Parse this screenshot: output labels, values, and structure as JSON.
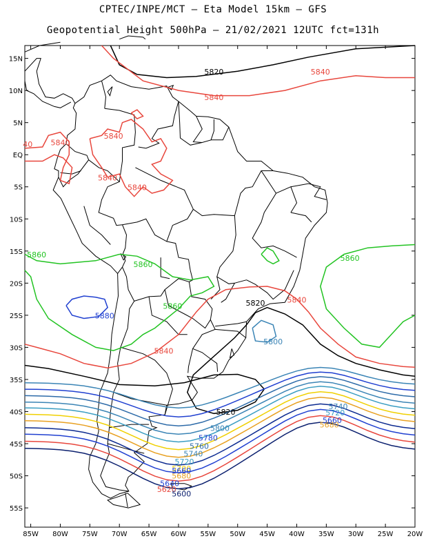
{
  "title": {
    "line1": "CPTEC/INPE/MCT –  Eta Model 15km – GFS",
    "line2": "Geopotential Height 500hPa – 21/02/2021 12UTC fct=131h"
  },
  "chart_data": {
    "type": "contour-map",
    "variable": "Geopotential Height 500hPa",
    "lon_range": [
      -86,
      -20
    ],
    "lat_range": [
      -58,
      17
    ],
    "lon_ticks": [
      "85W",
      "80W",
      "75W",
      "70W",
      "65W",
      "60W",
      "55W",
      "50W",
      "45W",
      "40W",
      "35W",
      "30W",
      "25W",
      "20W"
    ],
    "lat_ticks": [
      "15N",
      "10N",
      "5N",
      "EQ",
      "5S",
      "10S",
      "15S",
      "20S",
      "25S",
      "30S",
      "35S",
      "40S",
      "45S",
      "50S",
      "55S"
    ],
    "contour_labels": [
      {
        "text": "5820",
        "color": "#000000",
        "lon": -54,
        "lat": 12.5
      },
      {
        "text": "5840",
        "color": "#e8463c",
        "lon": -36,
        "lat": 12.5
      },
      {
        "text": "5840",
        "color": "#e8463c",
        "lon": -54,
        "lat": 8.5
      },
      {
        "text": "5840",
        "color": "#e8463c",
        "lon": -80,
        "lat": 1.5
      },
      {
        "text": "5840",
        "color": "#e8463c",
        "lon": -71,
        "lat": 2.5
      },
      {
        "text": "5840",
        "color": "#e8463c",
        "lon": -72,
        "lat": -4
      },
      {
        "text": "5840",
        "color": "#e8463c",
        "lon": -67,
        "lat": -5.5
      },
      {
        "text": "40",
        "color": "#e8463c",
        "lon": -85.5,
        "lat": 1.2
      },
      {
        "text": "5860",
        "color": "#22c322",
        "lon": -84,
        "lat": -16
      },
      {
        "text": "5860",
        "color": "#22c322",
        "lon": -66,
        "lat": -17.5
      },
      {
        "text": "5860",
        "color": "#22c322",
        "lon": -61,
        "lat": -24
      },
      {
        "text": "5860",
        "color": "#22c322",
        "lon": -31,
        "lat": -16.5
      },
      {
        "text": "5880",
        "color": "#1f3fd0",
        "lon": -72.5,
        "lat": -25.5
      },
      {
        "text": "5820",
        "color": "#000000",
        "lon": -47,
        "lat": -23.5
      },
      {
        "text": "5840",
        "color": "#e8463c",
        "lon": -40,
        "lat": -23
      },
      {
        "text": "5800",
        "color": "#3a84b5",
        "lon": -44,
        "lat": -29.5
      },
      {
        "text": "5840",
        "color": "#e8463c",
        "lon": -62.5,
        "lat": -31
      },
      {
        "text": "5820",
        "color": "#000000",
        "lon": -52,
        "lat": -40.5
      },
      {
        "text": "5800",
        "color": "#3a84b5",
        "lon": -53,
        "lat": -43
      },
      {
        "text": "5780",
        "color": "#1f3fd0",
        "lon": -55,
        "lat": -44.5
      },
      {
        "text": "5760",
        "color": "#2c6aa8",
        "lon": -56.5,
        "lat": -45.8
      },
      {
        "text": "5740",
        "color": "#3a84b5",
        "lon": -57.5,
        "lat": -47
      },
      {
        "text": "5720",
        "color": "#3a9dc2",
        "lon": -59,
        "lat": -48.2
      },
      {
        "text": "5740",
        "color": "#3a84b5",
        "lon": -33,
        "lat": -39.6
      },
      {
        "text": "5720",
        "color": "#3a9dc2",
        "lon": -33.5,
        "lat": -40.6
      },
      {
        "text": "5700",
        "color": "#f0d000",
        "lon": -59.5,
        "lat": -49.3
      },
      {
        "text": "5680",
        "color": "#e8a020",
        "lon": -59.5,
        "lat": -50.4
      },
      {
        "text": "5660",
        "color": "#1f3fd0",
        "lon": -59.5,
        "lat": -49.6
      },
      {
        "text": "5640",
        "color": "#1f3fd0",
        "lon": -61.5,
        "lat": -51.6
      },
      {
        "text": "5620",
        "color": "#e8463c",
        "lon": -62,
        "lat": -52.5
      },
      {
        "text": "5600",
        "color": "#0a1f6e",
        "lon": -59.5,
        "lat": -53.2
      },
      {
        "text": "5680",
        "color": "#e8a020",
        "lon": -34.5,
        "lat": -42.5
      },
      {
        "text": "5660",
        "color": "#1f3fd0",
        "lon": -34,
        "lat": -41.8
      }
    ]
  },
  "colors": {
    "h5600": "#0a1f6e",
    "h5620": "#e8463c",
    "h5640": "#1f3fd0",
    "h5660": "#0c2a90",
    "h5680": "#e8a020",
    "h5700": "#f0d000",
    "h5720": "#3a9dc2",
    "h5740": "#3a84b5",
    "h5760": "#2c6aa8",
    "h5780": "#1f3fd0",
    "h5800": "#3a84b5",
    "h5820": "#000000",
    "h5840": "#e8463c",
    "h5860": "#22c322",
    "h5880": "#1f3fd0"
  }
}
